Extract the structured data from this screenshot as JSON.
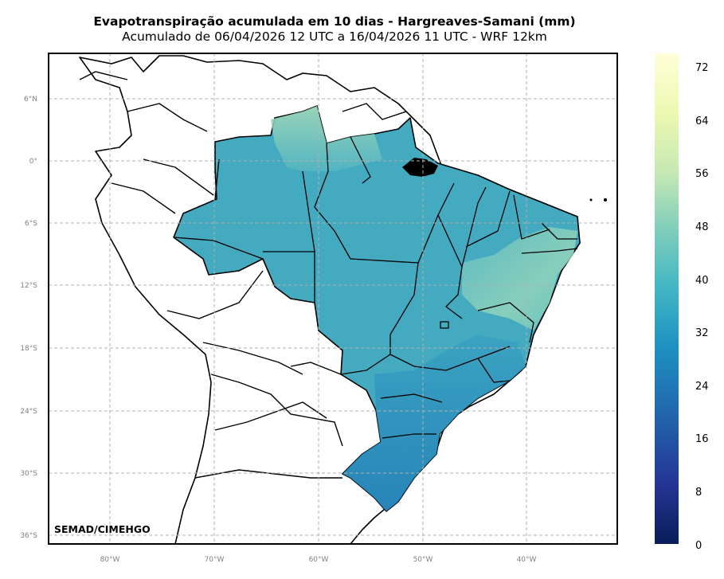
{
  "title": "Evapotranspiração acumulada em 10 dias - Hargreaves-Samani (mm)",
  "subtitle": "Acumulado de 06/04/2026 12 UTC a 16/04/2026 11 UTC - WRF 12km",
  "credit": "SEMAD/CIMEHGO",
  "lat_labels": [
    "6°N",
    "0°",
    "6°S",
    "12°S",
    "18°S",
    "24°S",
    "30°S",
    "36°S"
  ],
  "lon_labels": [
    "80°W",
    "70°W",
    "60°W",
    "50°W",
    "40°W"
  ],
  "colorbar": {
    "labels": [
      "72",
      "64",
      "56",
      "48",
      "40",
      "32",
      "24",
      "16",
      "8",
      "0"
    ],
    "min": 0,
    "max": 74,
    "colors": [
      "#081d58",
      "#253494",
      "#225ea8",
      "#1d91c0",
      "#41b6c4",
      "#7fcdbb",
      "#c7e9b4",
      "#edf8b1",
      "#ffffd9"
    ]
  },
  "colors": {
    "field_main": "#43aac0",
    "field_north": "#a6dab7",
    "field_northeast": "#86cebc",
    "field_south": "#2c8cbe",
    "gridline": "#b0b0b0"
  }
}
